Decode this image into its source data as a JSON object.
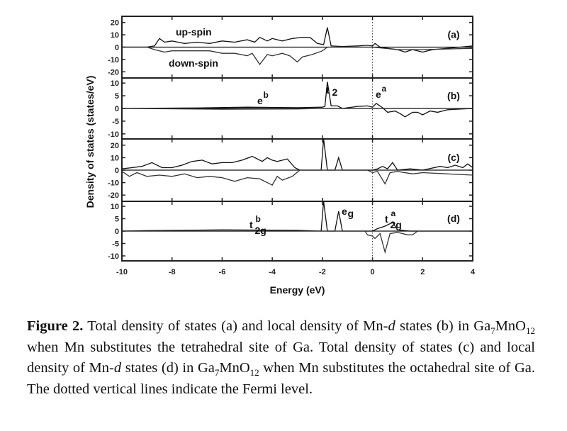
{
  "chart_data": {
    "type": "line",
    "xlabel": "Energy (eV)",
    "ylabel": "Density of states (states/eV)",
    "xlim": [
      -10,
      4
    ],
    "xticks": [
      -10,
      -8,
      -6,
      -4,
      -2,
      0,
      2,
      4
    ],
    "fermi_level": 0,
    "panels": [
      {
        "label": "(a)",
        "ylim": [
          -25,
          25
        ],
        "yticks": [
          20,
          10,
          0,
          -10,
          -20
        ],
        "annotations": [
          {
            "text": "up-spin"
          },
          {
            "text": "down-spin"
          }
        ],
        "series": [
          {
            "name": "up-spin",
            "points": [
              [
                -10,
                0
              ],
              [
                -9,
                0
              ],
              [
                -8.7,
                1
              ],
              [
                -8.5,
                7
              ],
              [
                -8.3,
                4
              ],
              [
                -8,
                5
              ],
              [
                -7.5,
                3
              ],
              [
                -7,
                4
              ],
              [
                -6.5,
                3
              ],
              [
                -6,
                5
              ],
              [
                -5.5,
                4
              ],
              [
                -5,
                6
              ],
              [
                -4.7,
                4
              ],
              [
                -4.5,
                8
              ],
              [
                -4.2,
                5
              ],
              [
                -4,
                7
              ],
              [
                -3.6,
                5
              ],
              [
                -3.2,
                7
              ],
              [
                -2.8,
                8
              ],
              [
                -2.5,
                8
              ],
              [
                -2.2,
                3
              ],
              [
                -1.95,
                2
              ],
              [
                -1.8,
                16
              ],
              [
                -1.65,
                1
              ],
              [
                -1.2,
                0.5
              ],
              [
                -0.6,
                1
              ],
              [
                -0.2,
                1.5
              ],
              [
                0,
                1
              ],
              [
                0.1,
                3
              ],
              [
                0.3,
                0
              ],
              [
                0.6,
                -1
              ],
              [
                1,
                -2
              ],
              [
                1.3,
                -4
              ],
              [
                1.6,
                -2
              ],
              [
                2,
                -4
              ],
              [
                2.4,
                -2
              ],
              [
                3,
                -1
              ],
              [
                3.5,
                0
              ],
              [
                4,
                1
              ]
            ]
          },
          {
            "name": "down-spin",
            "points": [
              [
                -10,
                0
              ],
              [
                -9,
                0
              ],
              [
                -8.7,
                -2
              ],
              [
                -8.3,
                -4
              ],
              [
                -8,
                -3
              ],
              [
                -7.5,
                -3
              ],
              [
                -7,
                -3
              ],
              [
                -6.5,
                -3
              ],
              [
                -6,
                -5
              ],
              [
                -5.5,
                -5
              ],
              [
                -5,
                -7
              ],
              [
                -4.8,
                -5
              ],
              [
                -4.5,
                -14
              ],
              [
                -4.2,
                -6
              ],
              [
                -4,
                -7
              ],
              [
                -3.6,
                -5
              ],
              [
                -3.3,
                -7
              ],
              [
                -3,
                -12
              ],
              [
                -2.8,
                -8
              ],
              [
                -2.4,
                -6
              ],
              [
                -2,
                -3
              ],
              [
                -1.8,
                0
              ],
              [
                0,
                0
              ],
              [
                0.5,
                -1
              ],
              [
                1,
                -2
              ],
              [
                2,
                -2
              ],
              [
                4,
                -1
              ]
            ]
          }
        ]
      },
      {
        "label": "(b)",
        "ylim": [
          -12,
          12
        ],
        "yticks": [
          10,
          5,
          0,
          -5,
          -10
        ],
        "annotations": [
          {
            "text": "e",
            "sup": "b"
          },
          {
            "text": "t",
            "sub": "2"
          },
          {
            "text": "e",
            "sup": "a"
          }
        ],
        "series": [
          {
            "name": "up-spin",
            "points": [
              [
                -10,
                0
              ],
              [
                -7,
                0.2
              ],
              [
                -5,
                0.5
              ],
              [
                -3,
                0.3
              ],
              [
                -2,
                0.5
              ],
              [
                -1.9,
                0.8
              ],
              [
                -1.8,
                10.5
              ],
              [
                -1.65,
                1
              ],
              [
                -1.4,
                1
              ],
              [
                -1.2,
                0
              ],
              [
                -0.6,
                0.8
              ],
              [
                -0.2,
                1
              ],
              [
                0,
                0.5
              ],
              [
                0.15,
                2
              ],
              [
                0.4,
                0.3
              ],
              [
                0.6,
                -1.5
              ],
              [
                0.9,
                -1
              ],
              [
                1.1,
                -2
              ],
              [
                1.3,
                -3.3
              ],
              [
                1.6,
                -1.5
              ],
              [
                1.8,
                -1.5
              ],
              [
                2,
                -2.5
              ],
              [
                2.3,
                -1
              ],
              [
                2.6,
                -1.5
              ],
              [
                3,
                -0.5
              ],
              [
                4,
                0
              ]
            ]
          },
          {
            "name": "down-spin",
            "points": [
              [
                -10,
                0
              ],
              [
                -6,
                -0.3
              ],
              [
                -3,
                -0.2
              ],
              [
                -2,
                0
              ],
              [
                4,
                0
              ]
            ]
          }
        ]
      },
      {
        "label": "(c)",
        "ylim": [
          -25,
          25
        ],
        "yticks": [
          20,
          10,
          0,
          -10,
          -20
        ],
        "annotations": [],
        "series": [
          {
            "name": "up-spin",
            "points": [
              [
                -10,
                1
              ],
              [
                -9.6,
                2
              ],
              [
                -9.2,
                3
              ],
              [
                -8.8,
                6
              ],
              [
                -8.4,
                2
              ],
              [
                -8,
                2
              ],
              [
                -7.6,
                4
              ],
              [
                -7.2,
                7
              ],
              [
                -6.8,
                8
              ],
              [
                -6.4,
                5
              ],
              [
                -6,
                6
              ],
              [
                -5.6,
                6
              ],
              [
                -5.2,
                8
              ],
              [
                -4.8,
                11
              ],
              [
                -4.4,
                7
              ],
              [
                -4.2,
                10
              ],
              [
                -4,
                8
              ],
              [
                -3.8,
                7
              ],
              [
                -3.4,
                9
              ],
              [
                -3.1,
                2
              ],
              [
                -2.9,
                0
              ],
              [
                -2.05,
                0
              ],
              [
                -1.95,
                27
              ],
              [
                -1.8,
                0
              ],
              [
                -1.5,
                0
              ],
              [
                -1.35,
                10
              ],
              [
                -1.2,
                0
              ],
              [
                0,
                0
              ],
              [
                0.2,
                1
              ],
              [
                0.4,
                3
              ],
              [
                0.6,
                1
              ],
              [
                0.8,
                6
              ],
              [
                1,
                0
              ],
              [
                1.5,
                1
              ],
              [
                2,
                0
              ],
              [
                2.7,
                3
              ],
              [
                3,
                2
              ],
              [
                3.3,
                4
              ],
              [
                3.6,
                2
              ],
              [
                3.8,
                5
              ],
              [
                4,
                2
              ]
            ]
          },
          {
            "name": "down-spin",
            "points": [
              [
                -10,
                -1
              ],
              [
                -9.7,
                -5
              ],
              [
                -9.4,
                -2
              ],
              [
                -9,
                -5
              ],
              [
                -8.5,
                -4
              ],
              [
                -8,
                -5
              ],
              [
                -7.5,
                -3
              ],
              [
                -7,
                -6
              ],
              [
                -6.5,
                -5
              ],
              [
                -6,
                -6
              ],
              [
                -5.5,
                -9
              ],
              [
                -5,
                -6
              ],
              [
                -4.5,
                -7
              ],
              [
                -4,
                -12
              ],
              [
                -3.8,
                -5
              ],
              [
                -3.6,
                -8
              ],
              [
                -3.2,
                -5
              ],
              [
                -2.9,
                0
              ],
              [
                -0.2,
                0
              ],
              [
                0,
                -2
              ],
              [
                0.2,
                -1
              ],
              [
                0.5,
                -11
              ],
              [
                0.7,
                -2
              ],
              [
                1,
                -1
              ],
              [
                1.6,
                -3
              ],
              [
                2,
                -2
              ],
              [
                3,
                -3
              ],
              [
                4,
                -4
              ]
            ]
          }
        ]
      },
      {
        "label": "(d)",
        "ylim": [
          -12,
          12
        ],
        "yticks": [
          10,
          5,
          0,
          -5,
          -10
        ],
        "annotations": [
          {
            "text": "t",
            "sup": "b",
            "sub": "2g"
          },
          {
            "text": "e",
            "sub": "g"
          },
          {
            "text": "t",
            "sup": "a",
            "sub": "2g"
          }
        ],
        "series": [
          {
            "name": "up-spin",
            "points": [
              [
                -10,
                0
              ],
              [
                -9,
                0.2
              ],
              [
                -6,
                0.5
              ],
              [
                -3,
                0.3
              ],
              [
                -2.05,
                0
              ],
              [
                -1.95,
                12
              ],
              [
                -1.8,
                0
              ],
              [
                -1.5,
                0
              ],
              [
                -1.35,
                8
              ],
              [
                -1.2,
                0
              ],
              [
                0,
                0
              ],
              [
                0.2,
                1
              ],
              [
                0.5,
                2
              ],
              [
                0.8,
                3.5
              ],
              [
                1,
                0.5
              ],
              [
                1.5,
                0
              ],
              [
                4,
                0
              ]
            ]
          },
          {
            "name": "down-spin",
            "points": [
              [
                -10,
                0
              ],
              [
                -0.3,
                0
              ],
              [
                -0.2,
                -1.5
              ],
              [
                0,
                -2
              ],
              [
                0.1,
                -3
              ],
              [
                0.3,
                -1
              ],
              [
                0.5,
                -8.5
              ],
              [
                0.7,
                -1
              ],
              [
                1,
                -0.5
              ],
              [
                1.4,
                -1.5
              ],
              [
                1.6,
                -1.5
              ],
              [
                1.8,
                0
              ],
              [
                4,
                0
              ]
            ]
          }
        ]
      }
    ]
  },
  "caption": {
    "label": "Figure 2.",
    "p1": " Total density of states (a) and local density of Mn-",
    "d1": "d",
    "p2": " states (b) in Ga",
    "s1": "7",
    "p3": "MnO",
    "s2": "12",
    "p4": " when Mn substitutes the tetrahedral site of Ga. Total density of states (c) and local density of Mn-",
    "d2": "d",
    "p5": " states (d) in Ga",
    "s3": "7",
    "p6": "MnO",
    "s4": "12",
    "p7": " when Mn substitutes the octahedral site of Ga. The dotted vertical lines indicate the Fermi level."
  }
}
